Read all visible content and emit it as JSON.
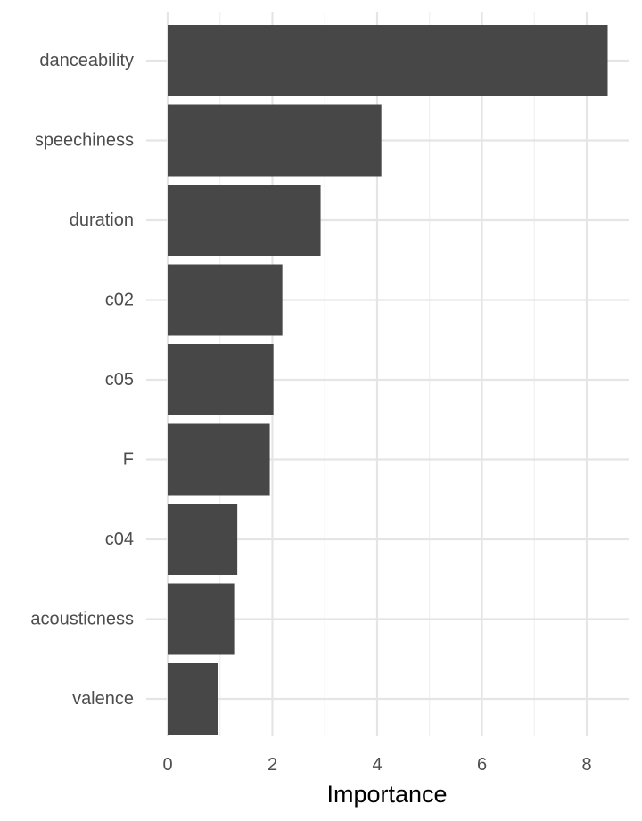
{
  "chart_data": {
    "type": "bar",
    "orientation": "horizontal",
    "title": "",
    "xlabel": "Importance",
    "ylabel": "",
    "categories": [
      "danceability",
      "speechiness",
      "duration",
      "c02",
      "c05",
      "F",
      "c04",
      "acousticness",
      "valence"
    ],
    "values": [
      8.4,
      4.08,
      2.92,
      2.19,
      2.02,
      1.95,
      1.33,
      1.27,
      0.96
    ],
    "xlim": [
      0,
      8.5
    ],
    "x_ticks": [
      0,
      2,
      4,
      6,
      8
    ],
    "grid": true,
    "legend": "none",
    "colors": {
      "bar": "#474747",
      "major_grid": "#e5e5e5",
      "minor_grid": "#f0f0f0",
      "tick_text": "#4d4d4d",
      "title_text": "#000000",
      "background": "#ffffff"
    }
  }
}
